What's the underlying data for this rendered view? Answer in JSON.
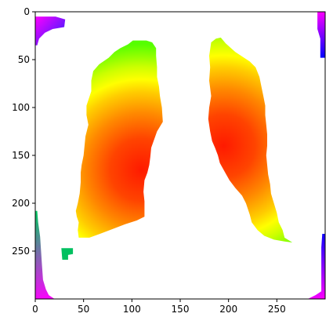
{
  "chart_data": {
    "type": "heatmap",
    "title": "",
    "xlabel": "",
    "ylabel": "",
    "xlim": [
      0,
      300
    ],
    "ylim": [
      300,
      0
    ],
    "image_extent": [
      0,
      300,
      300,
      0
    ],
    "colormap": "hsv",
    "background": "#ffffff",
    "xticks": [
      0,
      50,
      100,
      150,
      200,
      250
    ],
    "yticks": [
      0,
      50,
      100,
      150,
      200,
      250
    ],
    "grid": false,
    "regions": [
      {
        "name": "left-lung",
        "peak": [
          110,
          165
        ],
        "polygon": [
          [
            101,
            30
          ],
          [
            96,
            34
          ],
          [
            88,
            38
          ],
          [
            82,
            42
          ],
          [
            76,
            48
          ],
          [
            66,
            55
          ],
          [
            60,
            62
          ],
          [
            58,
            72
          ],
          [
            58,
            83
          ],
          [
            53,
            98
          ],
          [
            53,
            108
          ],
          [
            55,
            118
          ],
          [
            52,
            130
          ],
          [
            51,
            140
          ],
          [
            50,
            150
          ],
          [
            48,
            160
          ],
          [
            47,
            168
          ],
          [
            47,
            178
          ],
          [
            46,
            190
          ],
          [
            44,
            200
          ],
          [
            42,
            208
          ],
          [
            43,
            214
          ],
          [
            45,
            220
          ],
          [
            44,
            228
          ],
          [
            45,
            236
          ],
          [
            56,
            236
          ],
          [
            67,
            232
          ],
          [
            80,
            227
          ],
          [
            93,
            222
          ],
          [
            105,
            218
          ],
          [
            113,
            214
          ],
          [
            113,
            208
          ],
          [
            113,
            198
          ],
          [
            112,
            188
          ],
          [
            113,
            176
          ],
          [
            116,
            168
          ],
          [
            118,
            160
          ],
          [
            119,
            152
          ],
          [
            120,
            142
          ],
          [
            126,
            125
          ],
          [
            132,
            115
          ],
          [
            131,
            100
          ],
          [
            129,
            88
          ],
          [
            128,
            78
          ],
          [
            126,
            68
          ],
          [
            126,
            58
          ],
          [
            125,
            46
          ],
          [
            125,
            38
          ],
          [
            121,
            32
          ],
          [
            115,
            30
          ],
          [
            108,
            30
          ]
        ]
      },
      {
        "name": "right-lung",
        "peak": [
          195,
          140
        ],
        "polygon": [
          [
            182,
            32
          ],
          [
            187,
            28
          ],
          [
            192,
            27
          ],
          [
            197,
            33
          ],
          [
            207,
            42
          ],
          [
            222,
            52
          ],
          [
            228,
            58
          ],
          [
            232,
            68
          ],
          [
            234,
            78
          ],
          [
            236,
            88
          ],
          [
            238,
            98
          ],
          [
            238,
            108
          ],
          [
            239,
            118
          ],
          [
            240,
            128
          ],
          [
            240,
            140
          ],
          [
            239,
            150
          ],
          [
            240,
            160
          ],
          [
            241,
            170
          ],
          [
            243,
            180
          ],
          [
            244,
            190
          ],
          [
            247,
            200
          ],
          [
            250,
            210
          ],
          [
            252,
            220
          ],
          [
            256,
            228
          ],
          [
            258,
            236
          ],
          [
            266,
            241
          ],
          [
            258,
            240
          ],
          [
            247,
            238
          ],
          [
            237,
            234
          ],
          [
            230,
            228
          ],
          [
            224,
            220
          ],
          [
            222,
            212
          ],
          [
            218,
            200
          ],
          [
            214,
            192
          ],
          [
            207,
            184
          ],
          [
            201,
            176
          ],
          [
            196,
            167
          ],
          [
            191,
            158
          ],
          [
            189,
            150
          ],
          [
            186,
            142
          ],
          [
            183,
            135
          ],
          [
            181,
            125
          ],
          [
            179,
            112
          ],
          [
            180,
            100
          ],
          [
            182,
            88
          ],
          [
            180,
            72
          ],
          [
            181,
            58
          ],
          [
            180,
            46
          ]
        ]
      },
      {
        "name": "top-left-corner",
        "type": "corner",
        "polygon": [
          [
            0,
            5
          ],
          [
            10,
            5
          ],
          [
            21,
            5
          ],
          [
            31,
            8
          ],
          [
            30,
            16
          ],
          [
            18,
            18
          ],
          [
            10,
            22
          ],
          [
            4,
            28
          ],
          [
            2,
            35
          ],
          [
            0,
            35
          ]
        ],
        "color_from": "#ff00ff",
        "color_to": "#2020ff"
      },
      {
        "name": "top-right-corner",
        "type": "corner",
        "polygon": [
          [
            300,
            0
          ],
          [
            292,
            0
          ],
          [
            292,
            18
          ],
          [
            295,
            28
          ],
          [
            295,
            48
          ],
          [
            300,
            48
          ]
        ],
        "color_from": "#ff00ff",
        "color_to": "#0000ff"
      },
      {
        "name": "bottom-left-corner",
        "type": "corner",
        "polygon": [
          [
            0,
            208
          ],
          [
            2,
            208
          ],
          [
            3,
            220
          ],
          [
            5,
            235
          ],
          [
            6,
            250
          ],
          [
            7,
            265
          ],
          [
            8,
            280
          ],
          [
            11,
            290
          ],
          [
            14,
            296
          ],
          [
            20,
            300
          ],
          [
            0,
            300
          ]
        ],
        "color_from": "#00cc60",
        "color_to": "#ff00ff"
      },
      {
        "name": "bottom-right-corner",
        "type": "corner",
        "polygon": [
          [
            300,
            232
          ],
          [
            297,
            232
          ],
          [
            296,
            246
          ],
          [
            296,
            265
          ],
          [
            296,
            280
          ],
          [
            296,
            292
          ],
          [
            290,
            296
          ],
          [
            282,
            300
          ],
          [
            300,
            300
          ]
        ],
        "color_from": "#0000ff",
        "color_to": "#ff00ff"
      },
      {
        "name": "small-blob",
        "type": "blob",
        "polygon": [
          [
            27,
            247
          ],
          [
            39,
            247
          ],
          [
            39,
            253
          ],
          [
            34,
            254
          ],
          [
            34,
            259
          ],
          [
            28,
            259
          ]
        ],
        "color": "#00c060"
      }
    ]
  }
}
